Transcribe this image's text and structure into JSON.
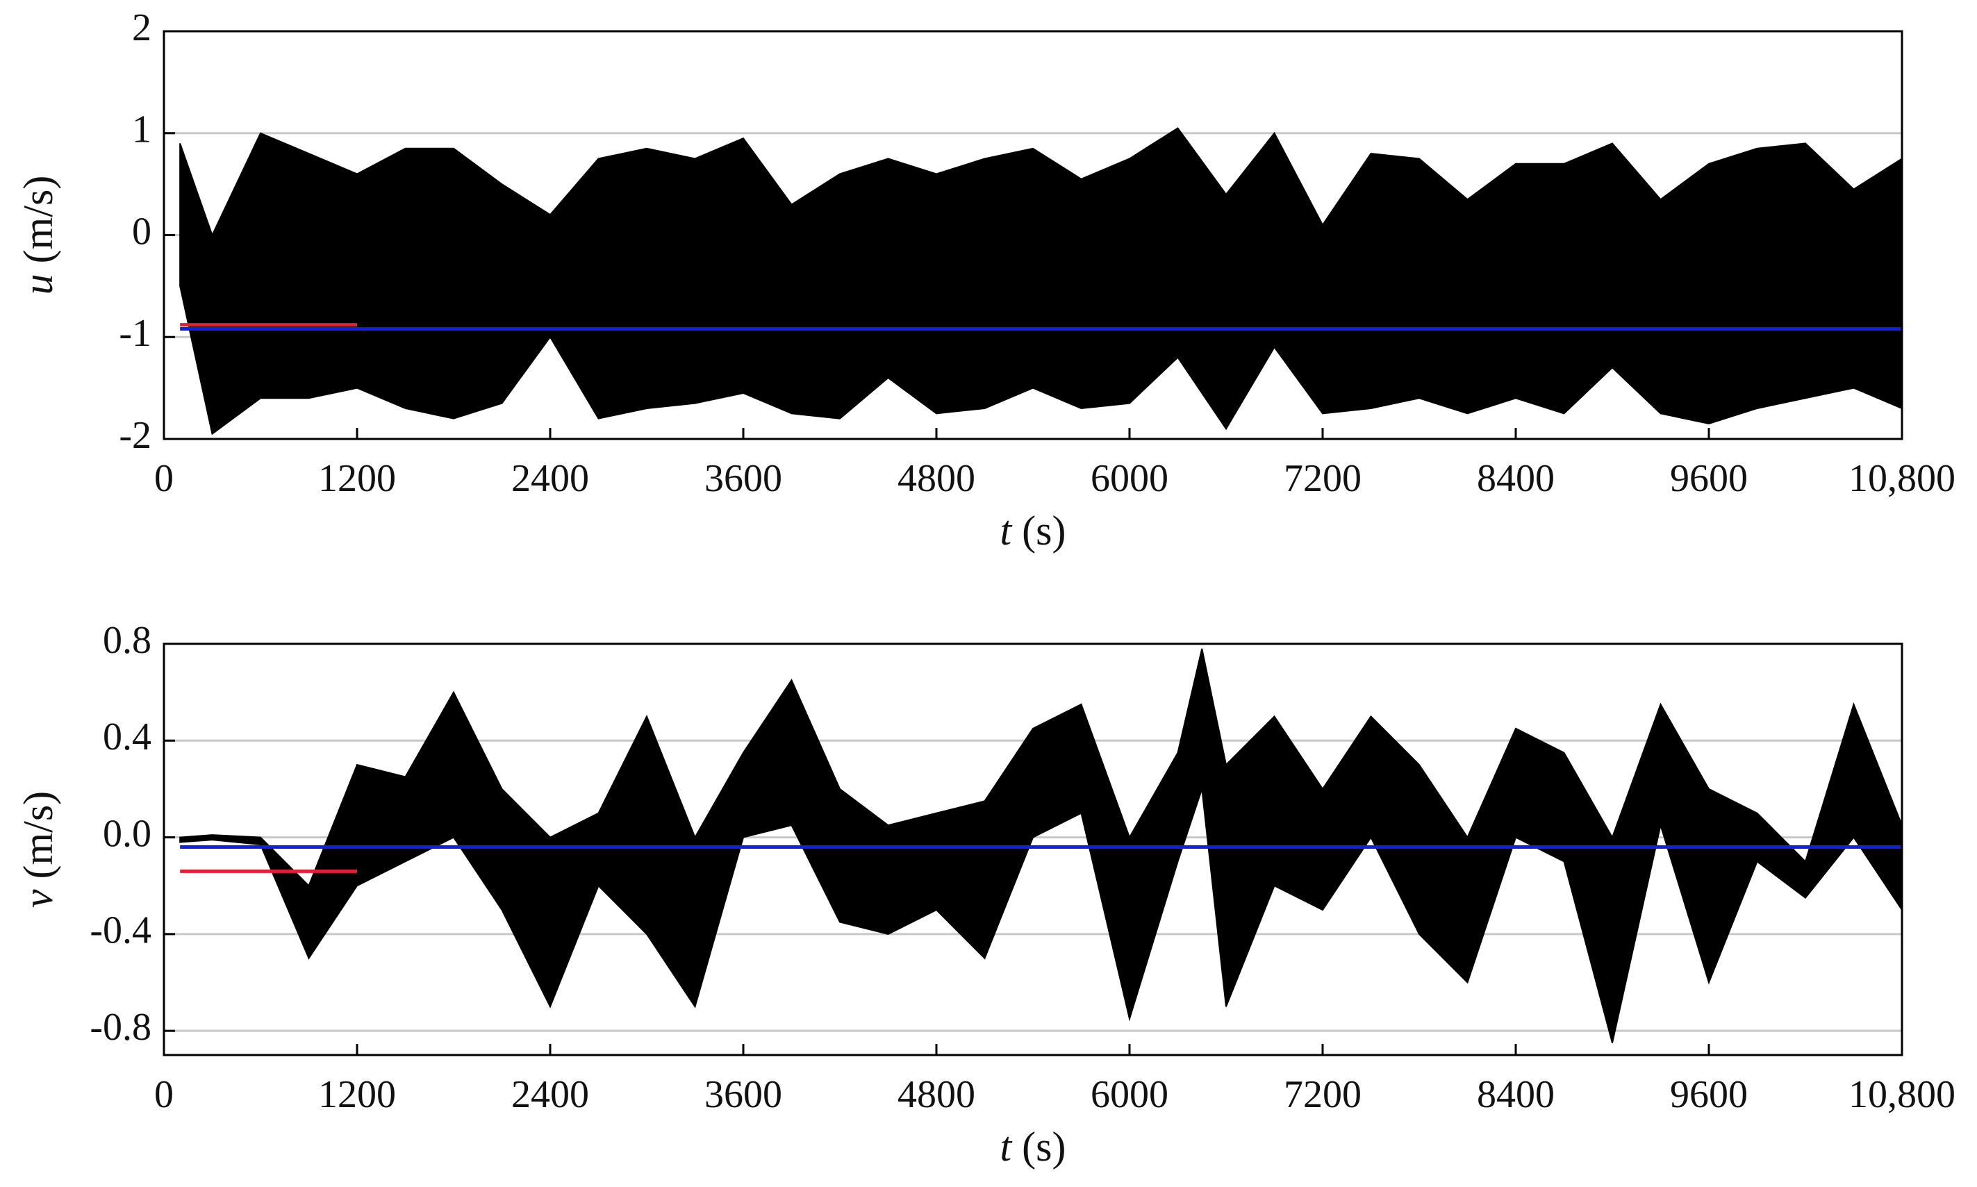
{
  "chart_data": [
    {
      "type": "band",
      "y_symbol": "u",
      "y_unit": "(m/s)",
      "x_symbol": "t",
      "x_unit": "(s)",
      "xlim": [
        0,
        10800
      ],
      "xticks": [
        0,
        1200,
        2400,
        3600,
        4800,
        6000,
        7200,
        8400,
        9600,
        {
          "value": 10800,
          "label": "10,800"
        }
      ],
      "ylim": [
        -2,
        2
      ],
      "yticks": [
        -2,
        -1,
        0,
        1,
        2
      ],
      "grid": true,
      "color": "#000000",
      "x": [
        100,
        300,
        600,
        900,
        1200,
        1500,
        1800,
        2100,
        2400,
        2700,
        3000,
        3300,
        3600,
        3900,
        4200,
        4500,
        4800,
        5100,
        5400,
        5700,
        6000,
        6300,
        6600,
        6900,
        7200,
        7500,
        7800,
        8100,
        8400,
        8700,
        9000,
        9300,
        9600,
        9900,
        10200,
        10500,
        10800
      ],
      "upper": [
        0.9,
        0.0,
        1.0,
        0.8,
        0.6,
        0.85,
        0.85,
        0.5,
        0.2,
        0.75,
        0.85,
        0.75,
        0.95,
        0.3,
        0.6,
        0.75,
        0.6,
        0.75,
        0.85,
        0.55,
        0.75,
        1.05,
        0.4,
        1.0,
        0.1,
        0.8,
        0.75,
        0.35,
        0.7,
        0.7,
        0.9,
        0.35,
        0.7,
        0.85,
        0.9,
        0.45,
        0.75
      ],
      "lower": [
        -0.5,
        -1.95,
        -1.6,
        -1.6,
        -1.5,
        -1.7,
        -1.8,
        -1.65,
        -1.0,
        -1.8,
        -1.7,
        -1.65,
        -1.55,
        -1.75,
        -1.8,
        -1.4,
        -1.75,
        -1.7,
        -1.5,
        -1.7,
        -1.65,
        -1.2,
        -1.9,
        -1.1,
        -1.75,
        -1.7,
        -1.6,
        -1.75,
        -1.6,
        -1.75,
        -1.3,
        -1.75,
        -1.85,
        -1.7,
        -1.6,
        -1.5,
        -1.7
      ],
      "lines": [
        {
          "color": "#e0203a",
          "x": [
            100,
            1200
          ],
          "values": [
            -0.88,
            -0.88
          ]
        },
        {
          "color": "#1020e0",
          "x": [
            100,
            10800
          ],
          "values": [
            -0.92,
            -0.92
          ]
        }
      ]
    },
    {
      "type": "band",
      "y_symbol": "v",
      "y_unit": "(m/s)",
      "x_symbol": "t",
      "x_unit": "(s)",
      "xlim": [
        0,
        10800
      ],
      "xticks": [
        0,
        1200,
        2400,
        3600,
        4800,
        6000,
        7200,
        8400,
        9600,
        {
          "value": 10800,
          "label": "10,800"
        }
      ],
      "ylim": [
        -0.9,
        0.8
      ],
      "yticks": [
        -0.8,
        -0.4,
        {
          "value": 0,
          "label": "0.0"
        },
        0.4,
        0.8
      ],
      "grid": true,
      "color": "#000000",
      "x": [
        100,
        300,
        600,
        900,
        1200,
        1500,
        1800,
        2100,
        2400,
        2700,
        3000,
        3300,
        3600,
        3900,
        4200,
        4500,
        4800,
        5100,
        5400,
        5700,
        6000,
        6300,
        6450,
        6600,
        6900,
        7200,
        7500,
        7800,
        8100,
        8400,
        8700,
        9000,
        9300,
        9600,
        9900,
        10200,
        10500,
        10800
      ],
      "upper": [
        0.0,
        0.01,
        0.0,
        -0.2,
        0.3,
        0.25,
        0.6,
        0.2,
        0.0,
        0.1,
        0.5,
        0.0,
        0.35,
        0.65,
        0.2,
        0.05,
        0.1,
        0.15,
        0.45,
        0.55,
        0.0,
        0.35,
        0.78,
        0.3,
        0.5,
        0.2,
        0.5,
        0.3,
        0.0,
        0.45,
        0.35,
        0.0,
        0.55,
        0.2,
        0.1,
        -0.1,
        0.55,
        0.05
      ],
      "lower": [
        -0.02,
        -0.01,
        -0.03,
        -0.5,
        -0.2,
        -0.1,
        0.0,
        -0.3,
        -0.7,
        -0.2,
        -0.4,
        -0.7,
        0.0,
        0.05,
        -0.35,
        -0.4,
        -0.3,
        -0.5,
        0.0,
        0.1,
        -0.75,
        -0.1,
        0.2,
        -0.7,
        -0.2,
        -0.3,
        0.0,
        -0.4,
        -0.6,
        0.0,
        -0.1,
        -0.85,
        0.05,
        -0.6,
        -0.1,
        -0.25,
        0.0,
        -0.3
      ],
      "lines": [
        {
          "color": "#e0203a",
          "x": [
            100,
            1200
          ],
          "values": [
            -0.14,
            -0.14
          ]
        },
        {
          "color": "#1020e0",
          "x": [
            100,
            10800
          ],
          "values": [
            -0.04,
            -0.04
          ]
        }
      ]
    }
  ]
}
